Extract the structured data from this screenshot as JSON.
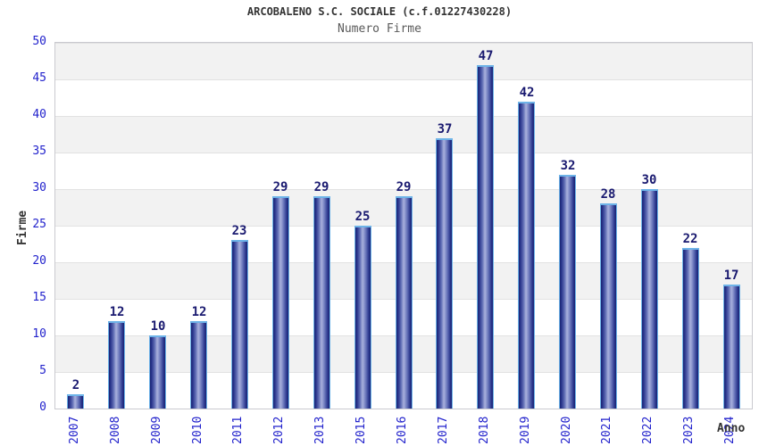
{
  "header": {
    "title": "ARCOBALENO S.C. SOCIALE (c.f.01227430228)",
    "subtitle": "Numero Firme"
  },
  "chart_data": {
    "type": "bar",
    "title": "ARCOBALENO S.C. SOCIALE (c.f.01227430228)",
    "subtitle": "Numero Firme",
    "xlabel": "Anno",
    "ylabel": "Firme",
    "categories": [
      "2007",
      "2008",
      "2009",
      "2010",
      "2011",
      "2012",
      "2013",
      "2015",
      "2016",
      "2017",
      "2018",
      "2019",
      "2020",
      "2021",
      "2022",
      "2023",
      "2024"
    ],
    "values": [
      2,
      12,
      10,
      12,
      23,
      29,
      29,
      25,
      29,
      37,
      47,
      42,
      32,
      28,
      30,
      22,
      17
    ],
    "yticks": [
      0,
      5,
      10,
      15,
      20,
      25,
      30,
      35,
      40,
      45,
      50
    ],
    "ylim": [
      0,
      50
    ],
    "grid": "horizontal-bands",
    "legend": "none",
    "colors": {
      "bar_dark": "#1b2573",
      "bar_light": "#a8b0dc",
      "bar_cap": "#6db3e8",
      "value_label": "#1a1a70",
      "tick_label": "#2222cc",
      "band_gray": "#f2f2f2",
      "grid_line": "#e2e2e2",
      "title": "#333333",
      "subtitle": "#5a5a5a"
    }
  }
}
